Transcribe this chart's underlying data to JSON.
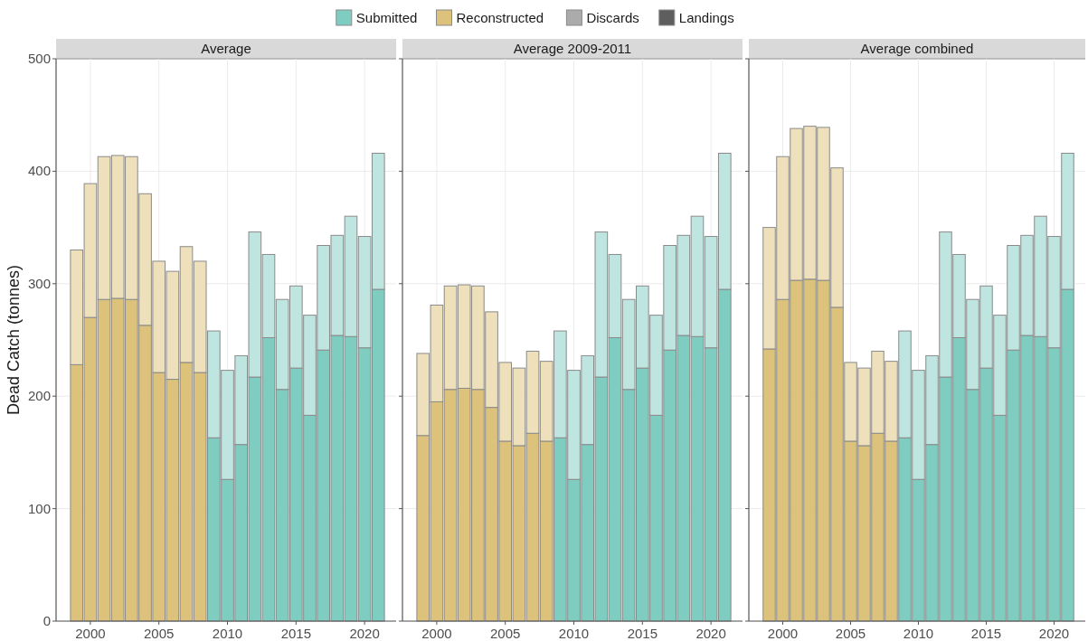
{
  "chart_data": [
    {
      "type": "bar",
      "title": "Average",
      "ylabel": "Dead Catch (tonnes)",
      "stacked": true,
      "legend": "top",
      "grid": true,
      "x": [
        1999,
        2000,
        2001,
        2002,
        2003,
        2004,
        2005,
        2006,
        2007,
        2008,
        2009,
        2010,
        2011,
        2012,
        2013,
        2014,
        2015,
        2016,
        2017,
        2018,
        2019,
        2020,
        2021
      ],
      "xlim": [
        1997.5,
        2022.3
      ],
      "xticks": [
        2000,
        2005,
        2010,
        2015,
        2020
      ],
      "ylim": [
        0,
        500
      ],
      "yticks": [
        0,
        100,
        200,
        300,
        400,
        500
      ],
      "series": [
        {
          "name": "Submitted",
          "color": "#7fcdc1",
          "values": [
            null,
            null,
            null,
            null,
            null,
            null,
            null,
            null,
            null,
            null,
            null,
            null,
            null,
            null,
            null,
            null,
            null,
            null,
            null,
            null,
            null,
            null,
            null
          ]
        },
        {
          "name": "Reconstructed",
          "color": "#ddc27c",
          "values": [
            null,
            null,
            null,
            null,
            null,
            null,
            null,
            null,
            null,
            null,
            null,
            null,
            null,
            null,
            null,
            null,
            null,
            null,
            null,
            null,
            null,
            null,
            null
          ]
        },
        {
          "name": "Discards",
          "color": "#ababab",
          "colors": [
            "#eee0ba",
            "#eee0ba",
            "#eee0ba",
            "#eee0ba",
            "#eee0ba",
            "#eee0ba",
            "#eee0ba",
            "#eee0ba",
            "#eee0ba",
            "#eee0ba",
            "#bfe5e0",
            "#bfe5e0",
            "#bfe5e0",
            "#bfe5e0",
            "#bfe5e0",
            "#bfe5e0",
            "#bfe5e0",
            "#bfe5e0",
            "#bfe5e0",
            "#bfe5e0",
            "#bfe5e0",
            "#bfe5e0",
            "#bfe5e0"
          ],
          "values": [
            102,
            119,
            127,
            127,
            127,
            117,
            99,
            96,
            103,
            99,
            95,
            97,
            79,
            129,
            74,
            80,
            73,
            89,
            93,
            89,
            107,
            99,
            121
          ]
        },
        {
          "name": "Landings",
          "color": "#5e5e5e",
          "colors": [
            "#ddc27c",
            "#ddc27c",
            "#ddc27c",
            "#ddc27c",
            "#ddc27c",
            "#ddc27c",
            "#ddc27c",
            "#ddc27c",
            "#ddc27c",
            "#ddc27c",
            "#7fcdc1",
            "#7fcdc1",
            "#7fcdc1",
            "#7fcdc1",
            "#7fcdc1",
            "#7fcdc1",
            "#7fcdc1",
            "#7fcdc1",
            "#7fcdc1",
            "#7fcdc1",
            "#7fcdc1",
            "#7fcdc1",
            "#7fcdc1"
          ],
          "values": [
            228,
            270,
            286,
            287,
            286,
            263,
            221,
            215,
            230,
            221,
            163,
            126,
            157,
            217,
            252,
            206,
            225,
            183,
            241,
            254,
            253,
            243,
            295
          ]
        }
      ]
    },
    {
      "type": "bar",
      "title": "Average 2009-2011",
      "stacked": true,
      "grid": true,
      "tick_labels": "x",
      "x": [
        1999,
        2000,
        2001,
        2002,
        2003,
        2004,
        2005,
        2006,
        2007,
        2008,
        2009,
        2010,
        2011,
        2012,
        2013,
        2014,
        2015,
        2016,
        2017,
        2018,
        2019,
        2020,
        2021
      ],
      "xlim": [
        1997.5,
        2022.3
      ],
      "xticks": [
        2000,
        2005,
        2010,
        2015,
        2020
      ],
      "ylim": [
        0,
        500
      ],
      "yticks": [
        0,
        100,
        200,
        300,
        400,
        500
      ],
      "series": [
        {
          "colors": [
            "#eee0ba",
            "#eee0ba",
            "#eee0ba",
            "#eee0ba",
            "#eee0ba",
            "#eee0ba",
            "#eee0ba",
            "#eee0ba",
            "#eee0ba",
            "#eee0ba",
            "#bfe5e0",
            "#bfe5e0",
            "#bfe5e0",
            "#bfe5e0",
            "#bfe5e0",
            "#bfe5e0",
            "#bfe5e0",
            "#bfe5e0",
            "#bfe5e0",
            "#bfe5e0",
            "#bfe5e0",
            "#bfe5e0",
            "#bfe5e0"
          ],
          "values": [
            73,
            86,
            92,
            92,
            92,
            85,
            70,
            69,
            73,
            71,
            95,
            97,
            79,
            129,
            74,
            80,
            73,
            89,
            93,
            89,
            107,
            99,
            121
          ]
        },
        {
          "colors": [
            "#ddc27c",
            "#ddc27c",
            "#ddc27c",
            "#ddc27c",
            "#ddc27c",
            "#ddc27c",
            "#ddc27c",
            "#ddc27c",
            "#ddc27c",
            "#ddc27c",
            "#7fcdc1",
            "#7fcdc1",
            "#7fcdc1",
            "#7fcdc1",
            "#7fcdc1",
            "#7fcdc1",
            "#7fcdc1",
            "#7fcdc1",
            "#7fcdc1",
            "#7fcdc1",
            "#7fcdc1",
            "#7fcdc1",
            "#7fcdc1"
          ],
          "values": [
            165,
            195,
            206,
            207,
            206,
            190,
            160,
            156,
            167,
            160,
            163,
            126,
            157,
            217,
            252,
            206,
            225,
            183,
            241,
            254,
            253,
            243,
            295
          ]
        }
      ]
    },
    {
      "type": "bar",
      "title": "Average combined",
      "stacked": true,
      "grid": true,
      "tick_labels": "x",
      "x": [
        1999,
        2000,
        2001,
        2002,
        2003,
        2004,
        2005,
        2006,
        2007,
        2008,
        2009,
        2010,
        2011,
        2012,
        2013,
        2014,
        2015,
        2016,
        2017,
        2018,
        2019,
        2020,
        2021
      ],
      "xlim": [
        1997.5,
        2022.3
      ],
      "xticks": [
        2000,
        2005,
        2010,
        2015,
        2020
      ],
      "ylim": [
        0,
        500
      ],
      "yticks": [
        0,
        100,
        200,
        300,
        400,
        500
      ],
      "series": [
        {
          "colors": [
            "#eee0ba",
            "#eee0ba",
            "#eee0ba",
            "#eee0ba",
            "#eee0ba",
            "#eee0ba",
            "#eee0ba",
            "#eee0ba",
            "#eee0ba",
            "#eee0ba",
            "#bfe5e0",
            "#bfe5e0",
            "#bfe5e0",
            "#bfe5e0",
            "#bfe5e0",
            "#bfe5e0",
            "#bfe5e0",
            "#bfe5e0",
            "#bfe5e0",
            "#bfe5e0",
            "#bfe5e0",
            "#bfe5e0",
            "#bfe5e0"
          ],
          "values": [
            108,
            127,
            135,
            136,
            136,
            124,
            70,
            69,
            73,
            71,
            95,
            97,
            79,
            129,
            74,
            80,
            73,
            89,
            93,
            89,
            107,
            99,
            121
          ]
        },
        {
          "colors": [
            "#ddc27c",
            "#ddc27c",
            "#ddc27c",
            "#ddc27c",
            "#ddc27c",
            "#ddc27c",
            "#ddc27c",
            "#ddc27c",
            "#ddc27c",
            "#ddc27c",
            "#7fcdc1",
            "#7fcdc1",
            "#7fcdc1",
            "#7fcdc1",
            "#7fcdc1",
            "#7fcdc1",
            "#7fcdc1",
            "#7fcdc1",
            "#7fcdc1",
            "#7fcdc1",
            "#7fcdc1",
            "#7fcdc1",
            "#7fcdc1"
          ],
          "values": [
            242,
            286,
            303,
            304,
            303,
            279,
            160,
            156,
            167,
            160,
            163,
            126,
            157,
            217,
            252,
            206,
            225,
            183,
            241,
            254,
            253,
            243,
            295
          ]
        }
      ]
    }
  ]
}
